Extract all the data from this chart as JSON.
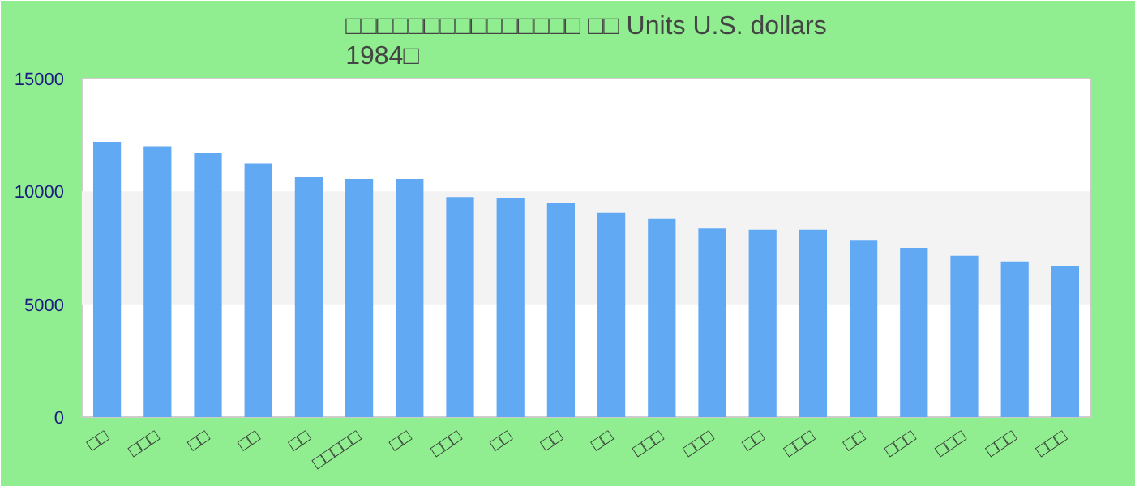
{
  "chart_data": {
    "type": "bar",
    "title": "□□□□□□□□□□□□□□□ □□ Units U.S. dollars\n1984□",
    "categories": [
      "□□",
      "□□□",
      "□□",
      "□□",
      "□□",
      "□□□□□",
      "□□",
      "□□□",
      "□□",
      "□□",
      "□□",
      "□□□",
      "□□□",
      "□□",
      "□□□",
      "□□",
      "□□□",
      "□□□",
      "□□□",
      "□□□"
    ],
    "values": [
      12200,
      12000,
      11700,
      11250,
      10650,
      10550,
      10550,
      9750,
      9700,
      9500,
      9050,
      8800,
      8350,
      8300,
      8300,
      7850,
      7500,
      7150,
      6900,
      6700
    ],
    "color": "#62a9f4",
    "ylim": [
      0,
      15000
    ],
    "yticks": [
      0,
      5000,
      10000,
      15000
    ],
    "bands": [
      {
        "axis": "y",
        "from": 5000,
        "to": 10000,
        "color": "#f3f3f3"
      }
    ]
  }
}
